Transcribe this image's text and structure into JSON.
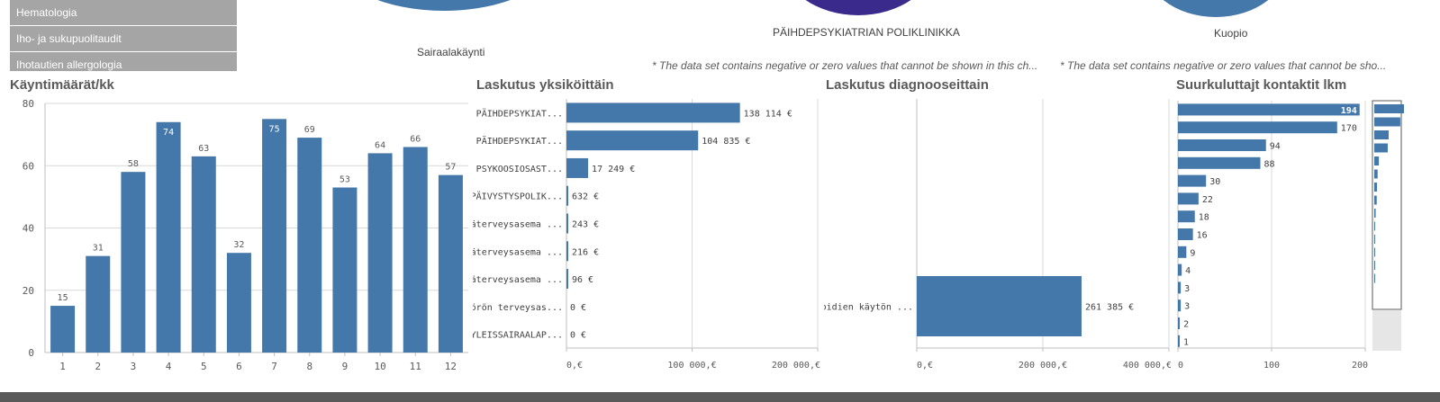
{
  "list": {
    "items": [
      "Hematologia",
      "Iho- ja sukupuolitaudit",
      "Ihotautien allergologia"
    ]
  },
  "pies": [
    {
      "label": "Sairaalakäynti",
      "color": "#4477aa"
    },
    {
      "label": "PÄIHDEPSYKIATRIAN POLIKLINIKKA",
      "color": "#3a2a8c"
    },
    {
      "label": "Kuopio",
      "color": "#4477aa"
    }
  ],
  "notes": [
    "* The data set contains negative or zero values that cannot be shown in this ch...",
    "* The data set contains negative or zero values that cannot be sho..."
  ],
  "colors": {
    "bar": "#4477aa",
    "grid": "#d9d9d9",
    "axis": "#bfbfbf"
  },
  "chart_data": [
    {
      "type": "bar",
      "title": "Käyntimäärät/kk",
      "categories": [
        "1",
        "2",
        "3",
        "4",
        "5",
        "6",
        "7",
        "8",
        "9",
        "10",
        "11",
        "12"
      ],
      "values": [
        15,
        31,
        58,
        74,
        63,
        32,
        75,
        69,
        53,
        64,
        66,
        57
      ],
      "ylim": [
        0,
        80
      ],
      "yticks": [
        "0",
        "20",
        "40",
        "60",
        "80"
      ],
      "grid": true
    },
    {
      "type": "bar",
      "orientation": "horizontal",
      "title": "Laskutus yksiköittäin",
      "categories": [
        "PÄIHDEPSYKIAT...",
        "PÄIHDEPSYKIAT...",
        "PSYKOOSIOSAST...",
        "PÄIVYSTYSPOLIK...",
        "Pääterveysasema ...",
        "Pääterveysasema ...",
        "Pääterveysasema ...",
        "Pyörön terveysas...",
        "YLEISSAIRAALAP..."
      ],
      "values": [
        138114,
        104835,
        17249,
        632,
        243,
        216,
        96,
        0,
        0
      ],
      "value_labels": [
        "138 114 €",
        "104 835 €",
        "17 249 €",
        "632 €",
        "243 €",
        "216 €",
        "96 €",
        "0 €",
        "0 €"
      ],
      "xlim": [
        0,
        200000
      ],
      "xticks": [
        "0,€",
        "100 000,€",
        "200 000,€"
      ],
      "grid": true
    },
    {
      "type": "bar",
      "orientation": "horizontal",
      "title": "Laskutus diagnooseittain",
      "categories": [
        "Opioidien käytön ..."
      ],
      "values": [
        261385
      ],
      "value_labels": [
        "261 385 €"
      ],
      "xlim": [
        0,
        400000
      ],
      "xticks": [
        "0,€",
        "200 000,€",
        "400 000,€"
      ],
      "grid": true
    },
    {
      "type": "bar",
      "orientation": "horizontal",
      "title": "Suurkuluttajt kontaktit lkm",
      "values": [
        194,
        170,
        94,
        88,
        30,
        22,
        18,
        16,
        9,
        4,
        3,
        3,
        2,
        1
      ],
      "value_labels": [
        "194",
        "170",
        "94",
        "88",
        "30",
        "22",
        "18",
        "16",
        "9",
        "4",
        "3",
        "3",
        "2",
        "1"
      ],
      "xlim": [
        0,
        200
      ],
      "xticks": [
        "0",
        "100",
        "200"
      ],
      "grid": true
    }
  ]
}
